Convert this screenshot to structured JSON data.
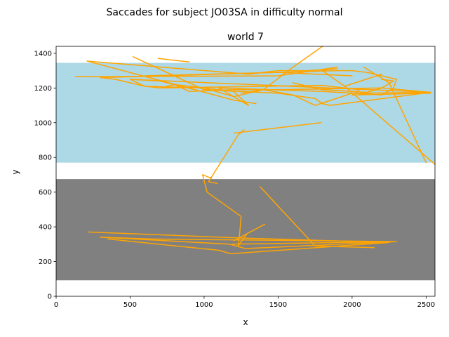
{
  "chart_data": {
    "type": "line",
    "suptitle": "Saccades for subject JO03SA in difficulty normal",
    "title": "world 7",
    "xlabel": "x",
    "ylabel": "y",
    "xlim": [
      0,
      2560
    ],
    "ylim": [
      0,
      1440
    ],
    "xticks": [
      0,
      500,
      1000,
      1500,
      2000,
      2500
    ],
    "yticks": [
      0,
      200,
      400,
      600,
      800,
      1000,
      1200,
      1400
    ],
    "grid": false,
    "regions": [
      {
        "y0": 770,
        "y1": 1345,
        "color": "#add8e6"
      },
      {
        "y0": 92,
        "y1": 675,
        "color": "#808080"
      }
    ],
    "series_color": "#ffa500",
    "paths": [
      [
        [
          1800,
          1440
        ],
        [
          1600,
          1320
        ],
        [
          1400,
          1190
        ],
        [
          1200,
          1150
        ],
        [
          1000,
          1200
        ],
        [
          600,
          1210
        ],
        [
          400,
          1250
        ],
        [
          300,
          1260
        ]
      ],
      [
        [
          300,
          1260
        ],
        [
          1900,
          1300
        ],
        [
          2000,
          1300
        ],
        [
          2100,
          1290
        ],
        [
          2300,
          1250
        ],
        [
          2280,
          1200
        ],
        [
          2200,
          1160
        ],
        [
          1800,
          1180
        ],
        [
          1100,
          1200
        ]
      ],
      [
        [
          1100,
          1200
        ],
        [
          1300,
          1100
        ],
        [
          1200,
          1180
        ],
        [
          1000,
          1200
        ],
        [
          800,
          1220
        ],
        [
          700,
          1200
        ],
        [
          600,
          1210
        ],
        [
          500,
          1250
        ]
      ],
      [
        [
          500,
          1250
        ],
        [
          2530,
          1175
        ],
        [
          2000,
          1170
        ],
        [
          1750,
          1100
        ],
        [
          1600,
          1160
        ],
        [
          1400,
          1190
        ],
        [
          1250,
          1170
        ]
      ],
      [
        [
          520,
          1380
        ],
        [
          1000,
          1190
        ],
        [
          1500,
          1170
        ],
        [
          1750,
          1140
        ],
        [
          1800,
          1110
        ],
        [
          1850,
          1100
        ],
        [
          2530,
          1175
        ],
        [
          2200,
          1200
        ],
        [
          1500,
          1190
        ],
        [
          1200,
          1190
        ],
        [
          900,
          1180
        ],
        [
          800,
          1220
        ],
        [
          700,
          1240
        ],
        [
          500,
          1250
        ]
      ],
      [
        [
          690,
          1370
        ],
        [
          900,
          1350
        ]
      ],
      [
        [
          600,
          1270
        ],
        [
          1500,
          1290
        ],
        [
          2000,
          1270
        ]
      ],
      [
        [
          130,
          1265
        ],
        [
          1500,
          1270
        ],
        [
          1900,
          1320
        ],
        [
          1800,
          1300
        ],
        [
          1950,
          1210
        ]
      ],
      [
        [
          1950,
          1210
        ],
        [
          2200,
          1280
        ]
      ],
      [
        [
          1950,
          1210
        ],
        [
          2560,
          760
        ]
      ],
      [
        [
          2200,
          1250
        ],
        [
          2280,
          1240
        ],
        [
          2200,
          1200
        ],
        [
          2100,
          1175
        ],
        [
          1800,
          1190
        ],
        [
          1600,
          1230
        ]
      ],
      [
        [
          210,
          1355
        ],
        [
          1300,
          1280
        ],
        [
          1500,
          1300
        ],
        [
          1700,
          1300
        ],
        [
          1900,
          1310
        ]
      ],
      [
        [
          210,
          1355
        ],
        [
          1200,
          1130
        ],
        [
          1350,
          1110
        ]
      ],
      [
        [
          2080,
          1320
        ],
        [
          2250,
          1230
        ],
        [
          2500,
          770
        ]
      ],
      [
        [
          700,
          1200
        ],
        [
          1800,
          1215
        ],
        [
          2050,
          1190
        ],
        [
          2000,
          1160
        ],
        [
          2530,
          1170
        ]
      ],
      [
        [
          1200,
          940
        ],
        [
          1790,
          1000
        ]
      ],
      [
        [
          1270,
          960
        ],
        [
          1230,
          930
        ],
        [
          1030,
          660
        ],
        [
          1090,
          650
        ]
      ],
      [
        [
          1050,
          680
        ],
        [
          990,
          700
        ],
        [
          1020,
          600
        ],
        [
          1250,
          460
        ],
        [
          1240,
          360
        ],
        [
          1230,
          290
        ],
        [
          1290,
          360
        ],
        [
          1200,
          320
        ],
        [
          1410,
          415
        ]
      ],
      [
        [
          1380,
          630
        ],
        [
          1750,
          290
        ],
        [
          2150,
          280
        ]
      ],
      [
        [
          1190,
          300
        ],
        [
          2290,
          315
        ],
        [
          640,
          330
        ],
        [
          300,
          340
        ]
      ],
      [
        [
          220,
          370
        ],
        [
          1280,
          335
        ],
        [
          2250,
          310
        ],
        [
          1180,
          245
        ],
        [
          1100,
          265
        ],
        [
          350,
          330
        ]
      ],
      [
        [
          300,
          340
        ],
        [
          1170,
          300
        ],
        [
          1280,
          275
        ],
        [
          2300,
          315
        ]
      ]
    ]
  }
}
